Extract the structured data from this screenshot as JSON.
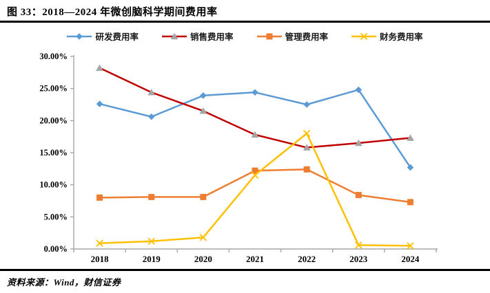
{
  "title": "图 33：2018—2024 年微创脑科学期间费用率",
  "source": "资料来源：Wind，财信证券",
  "chart_data": {
    "type": "line",
    "title": "图 33：2018—2024 年微创脑科学期间费用率",
    "categories": [
      "2018",
      "2019",
      "2020",
      "2021",
      "2022",
      "2023",
      "2024"
    ],
    "series": [
      {
        "name": "研发费用率",
        "color": "#5B9BD5",
        "marker": "diamond",
        "marker_color": "#5B9BD5",
        "values": [
          22.6,
          20.6,
          23.9,
          24.4,
          22.5,
          24.8,
          12.7
        ]
      },
      {
        "name": "销售费用率",
        "color": "#C00000",
        "marker": "triangle",
        "marker_color": "#A5A5A5",
        "values": [
          28.2,
          24.4,
          21.5,
          17.8,
          15.8,
          16.5,
          17.3
        ]
      },
      {
        "name": "管理费用率",
        "color": "#ED7D31",
        "marker": "square",
        "marker_color": "#ED7D31",
        "values": [
          8.0,
          8.1,
          8.1,
          12.2,
          12.4,
          8.4,
          7.3
        ]
      },
      {
        "name": "财务费用率",
        "color": "#FFC000",
        "marker": "x",
        "marker_color": "#FFC000",
        "values": [
          0.9,
          1.2,
          1.8,
          11.5,
          18.0,
          0.6,
          0.5
        ]
      }
    ],
    "xlabel": "",
    "ylabel": "",
    "ylim": [
      0,
      30
    ],
    "yticks": [
      0,
      5,
      10,
      15,
      20,
      25,
      30
    ],
    "ytick_labels": [
      "0.00%",
      "5.00%",
      "10.00%",
      "15.00%",
      "20.00%",
      "25.00%",
      "30.00%"
    ],
    "grid": false,
    "legend_position": "top",
    "axis_color": "#A6A6A6",
    "tick_label_color": "#000000"
  }
}
